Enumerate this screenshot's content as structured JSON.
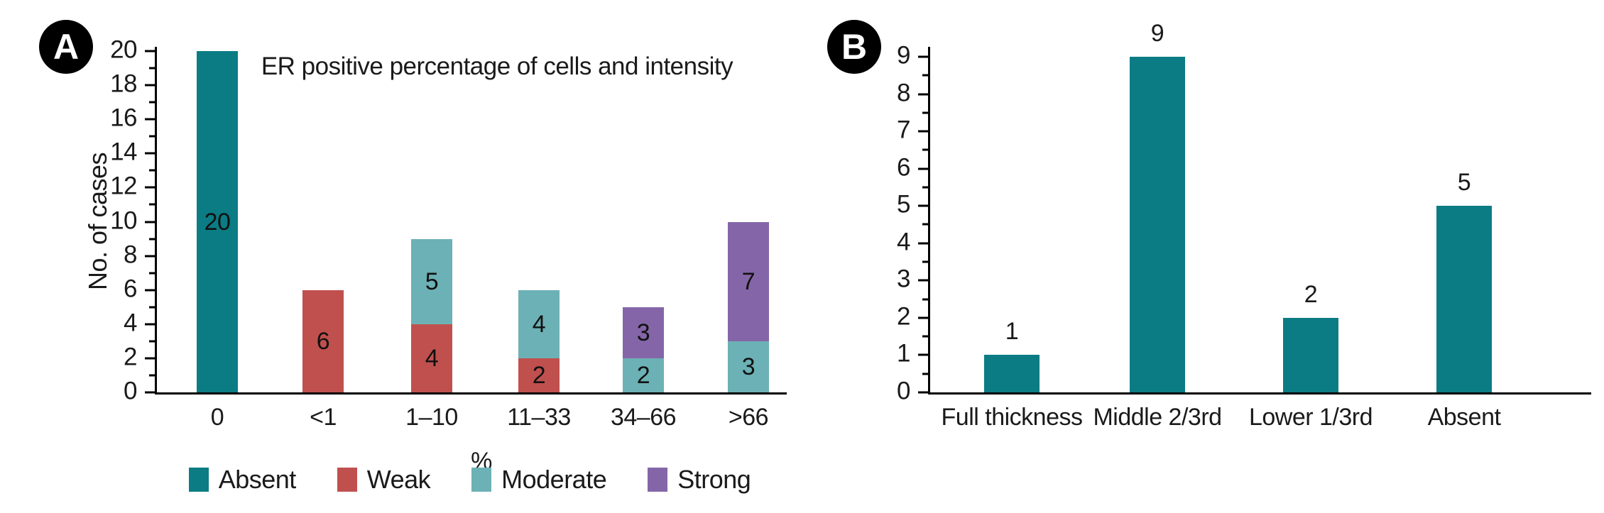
{
  "figure": {
    "panel_a_badge": "A",
    "panel_b_badge": "B"
  },
  "colors": {
    "absent_teal": "#0b7c84",
    "weak_red": "#c0504e",
    "moderate_light_teal": "#6cb1b5",
    "strong_purple": "#8466a8",
    "axis_black": "#000000",
    "text": "#1a1a1a",
    "badge_bg": "#000000",
    "badge_text": "#ffffff"
  },
  "legend": {
    "items": [
      {
        "label": "Absent",
        "color": "#0b7c84"
      },
      {
        "label": "Weak",
        "color": "#c0504e"
      },
      {
        "label": "Moderate",
        "color": "#6cb1b5"
      },
      {
        "label": "Strong",
        "color": "#8466a8"
      }
    ]
  },
  "chart_data": [
    {
      "id": "A",
      "type": "bar",
      "stacked": true,
      "title": "ER positive percentage of cells and intensity",
      "xlabel": "%",
      "ylabel": "No. of cases",
      "categories": [
        "0",
        "<1",
        "1–10",
        "11–33",
        "34–66",
        ">66"
      ],
      "series": [
        {
          "name": "Absent",
          "color": "#0b7c84",
          "values": [
            20,
            0,
            0,
            0,
            0,
            0
          ]
        },
        {
          "name": "Weak",
          "color": "#c0504e",
          "values": [
            0,
            6,
            4,
            2,
            0,
            0
          ]
        },
        {
          "name": "Moderate",
          "color": "#6cb1b5",
          "values": [
            0,
            0,
            5,
            4,
            2,
            3
          ]
        },
        {
          "name": "Strong",
          "color": "#8466a8",
          "values": [
            0,
            0,
            0,
            0,
            3,
            7
          ]
        }
      ],
      "stack_totals": [
        20,
        6,
        9,
        6,
        5,
        10
      ],
      "ylim": [
        0,
        20
      ],
      "yticks": [
        0,
        2,
        4,
        6,
        8,
        10,
        12,
        14,
        16,
        18,
        20
      ],
      "minor_ticks": [
        1,
        3,
        5,
        7,
        9,
        11,
        13,
        15,
        17,
        19
      ],
      "grid": false,
      "legend_position": "bottom",
      "segment_labels_inside": true
    },
    {
      "id": "B",
      "type": "bar",
      "stacked": false,
      "title": "",
      "xlabel": "",
      "ylabel": "",
      "categories": [
        "Full thickness",
        "Middle 2/3rd",
        "Lower 1/3rd",
        "Absent"
      ],
      "values": [
        1,
        9,
        2,
        5
      ],
      "bar_color": "#0b7c84",
      "ylim": [
        0,
        9
      ],
      "yticks": [
        0,
        1,
        2,
        3,
        4,
        5,
        6,
        7,
        8,
        9
      ],
      "minor_ticks": [
        0.5,
        1.5,
        2.5,
        3.5,
        4.5,
        5.5,
        6.5,
        7.5,
        8.5
      ],
      "grid": false,
      "legend_position": "none",
      "value_labels_above": true
    }
  ]
}
